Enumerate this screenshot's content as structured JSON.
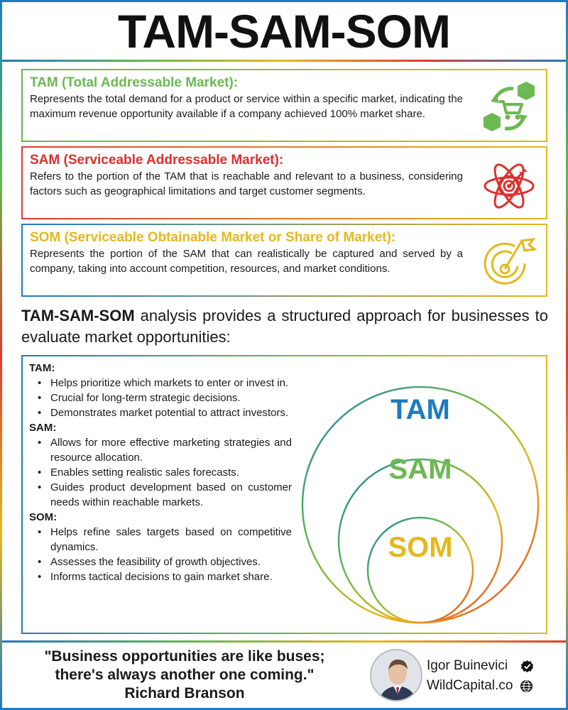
{
  "title": "TAM-SAM-SOM",
  "definitions": {
    "tam": {
      "heading": "TAM (Total Addressable Market):",
      "description": "Represents the total demand for a product or service within a specific market, indicating the maximum revenue opportunity available if a company achieved 100% market share.",
      "icon": "cart-cycle-icon"
    },
    "sam": {
      "heading": "SAM (Serviceable Addressable Market):",
      "description": "Refers to the portion of the TAM that is reachable and relevant to a business, considering factors such as geographical limitations and target customer segments.",
      "icon": "target-atom-icon"
    },
    "som": {
      "heading": "SOM (Serviceable Obtainable Market or Share of Market):",
      "description": "Represents the portion of the SAM that can realistically be captured and served by a company, taking into account competition, resources, and market conditions.",
      "icon": "target-flag-icon"
    }
  },
  "intro": {
    "bold": "TAM-SAM-SOM",
    "rest": " analysis provides a structured approach for businesses to evaluate market opportunities:"
  },
  "benefits": {
    "tam": {
      "label": "TAM:",
      "items": [
        "Helps prioritize which markets to enter or invest in.",
        "Crucial for long-term strategic decisions.",
        "Demonstrates market potential to attract investors."
      ]
    },
    "sam": {
      "label": "SAM:",
      "items": [
        "Allows for more effective marketing strategies and resource allocation.",
        "Enables setting realistic sales forecasts.",
        "Guides product development based on customer needs within reachable markets."
      ]
    },
    "som": {
      "label": "SOM:",
      "items": [
        "Helps refine sales targets based on competitive dynamics.",
        "Assesses the feasibility of growth objectives.",
        "Informs tactical decisions to gain market share."
      ]
    }
  },
  "diagram": {
    "tam_label": "TAM",
    "sam_label": "SAM",
    "som_label": "SOM",
    "colors": {
      "tam": "#1f7bbf",
      "sam": "#6cb852",
      "som": "#e5b81c",
      "red": "#e03a2f"
    }
  },
  "quote": {
    "line1": "\"Business opportunities are like buses;",
    "line2": "there's always another one coming.\"",
    "author": "Richard Branson"
  },
  "author": {
    "name": "Igor Buinevici",
    "site": "WildCapital.co",
    "name_badge": "verified-check-icon",
    "site_badge": "globe-icon"
  }
}
